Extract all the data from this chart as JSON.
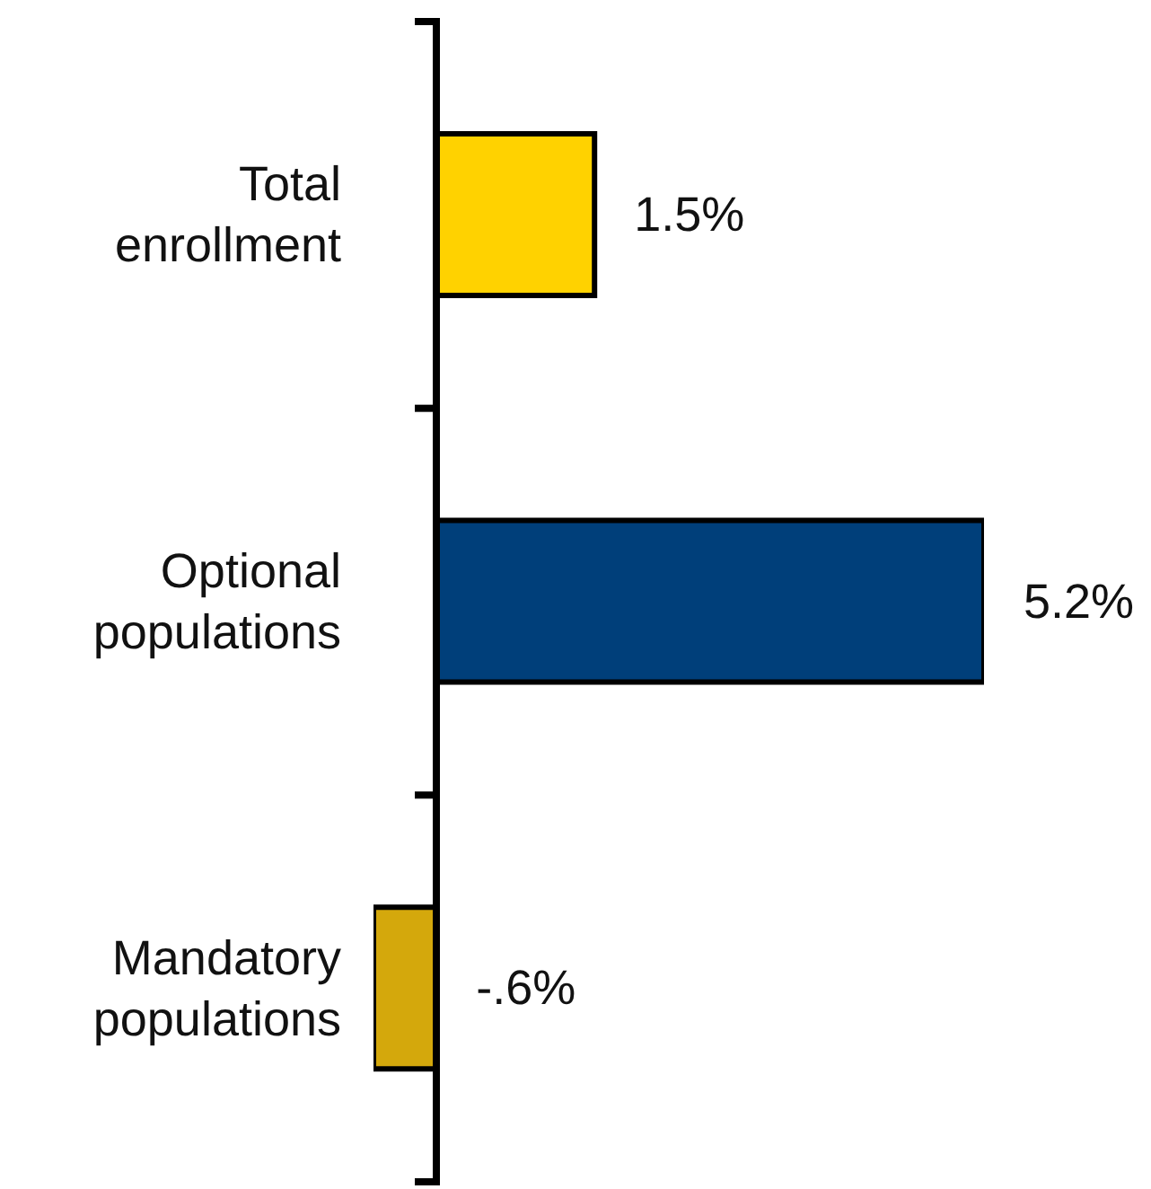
{
  "chart_data": {
    "type": "bar",
    "orientation": "horizontal",
    "categories": [
      "Total enrollment",
      "Optional populations",
      "Mandatory populations"
    ],
    "values": [
      1.5,
      5.2,
      -0.6
    ],
    "colors": [
      "#ffd200",
      "#003f7a",
      "#d4a80c"
    ],
    "value_labels": [
      "1.5%",
      "5.2%",
      "-.6%"
    ]
  }
}
